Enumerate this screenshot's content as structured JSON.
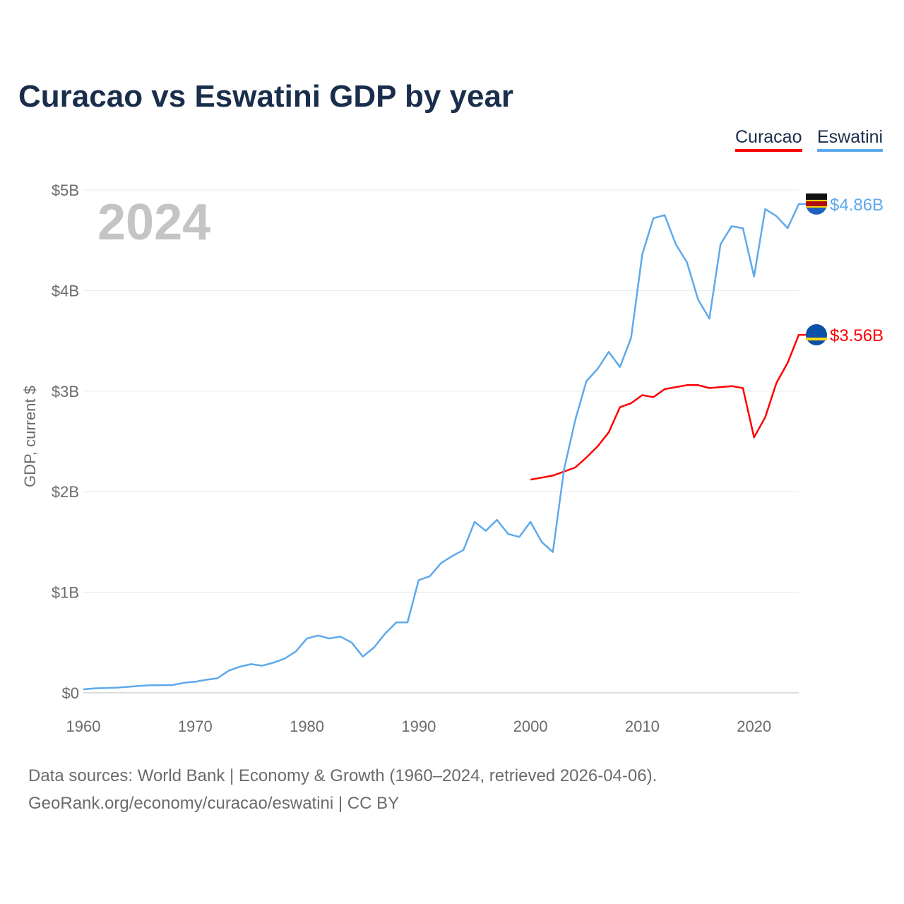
{
  "chart_data": {
    "type": "line",
    "title": "Curacao vs Eswatini GDP by year",
    "xlabel": "",
    "ylabel": "GDP, current $",
    "xlim": [
      1960,
      2024
    ],
    "ylim": [
      0,
      5
    ],
    "y_unit": "billions USD",
    "x_ticks": [
      "1960",
      "1970",
      "1980",
      "1990",
      "2000",
      "2010",
      "2020"
    ],
    "y_ticks": [
      "$0",
      "$1B",
      "$2B",
      "$3B",
      "$4B",
      "$5B"
    ],
    "year_label": "2024",
    "legend_position": "top-right",
    "grid": true,
    "series": [
      {
        "name": "Curacao",
        "color": "#ff0000",
        "start_year": 2000,
        "end_label": "$3.56B",
        "values": [
          2.12,
          2.14,
          2.16,
          2.2,
          2.24,
          2.34,
          2.45,
          2.59,
          2.84,
          2.88,
          2.96,
          2.94,
          3.02,
          3.04,
          3.06,
          3.06,
          3.03,
          3.04,
          3.05,
          3.03,
          2.54,
          2.74,
          3.08,
          3.28,
          3.56
        ]
      },
      {
        "name": "Eswatini",
        "color": "#5ea9ec",
        "start_year": 1960,
        "end_label": "$4.86B",
        "values": [
          0.035,
          0.045,
          0.047,
          0.052,
          0.06,
          0.068,
          0.075,
          0.075,
          0.078,
          0.1,
          0.11,
          0.13,
          0.145,
          0.22,
          0.26,
          0.285,
          0.27,
          0.3,
          0.34,
          0.41,
          0.54,
          0.57,
          0.54,
          0.56,
          0.5,
          0.36,
          0.45,
          0.59,
          0.7,
          0.7,
          1.12,
          1.16,
          1.29,
          1.36,
          1.42,
          1.7,
          1.61,
          1.72,
          1.58,
          1.55,
          1.7,
          1.5,
          1.4,
          2.22,
          2.71,
          3.1,
          3.22,
          3.39,
          3.24,
          3.53,
          4.36,
          4.72,
          4.75,
          4.46,
          4.28,
          3.91,
          3.72,
          4.46,
          4.64,
          4.62,
          4.14,
          4.81,
          4.74,
          4.62,
          4.86
        ]
      }
    ]
  },
  "footer": {
    "line1": "Data sources: World Bank | Economy & Growth (1960–2024, retrieved 2026-04-06).",
    "line2": "GeoRank.org/economy/curacao/eswatini | CC BY"
  }
}
